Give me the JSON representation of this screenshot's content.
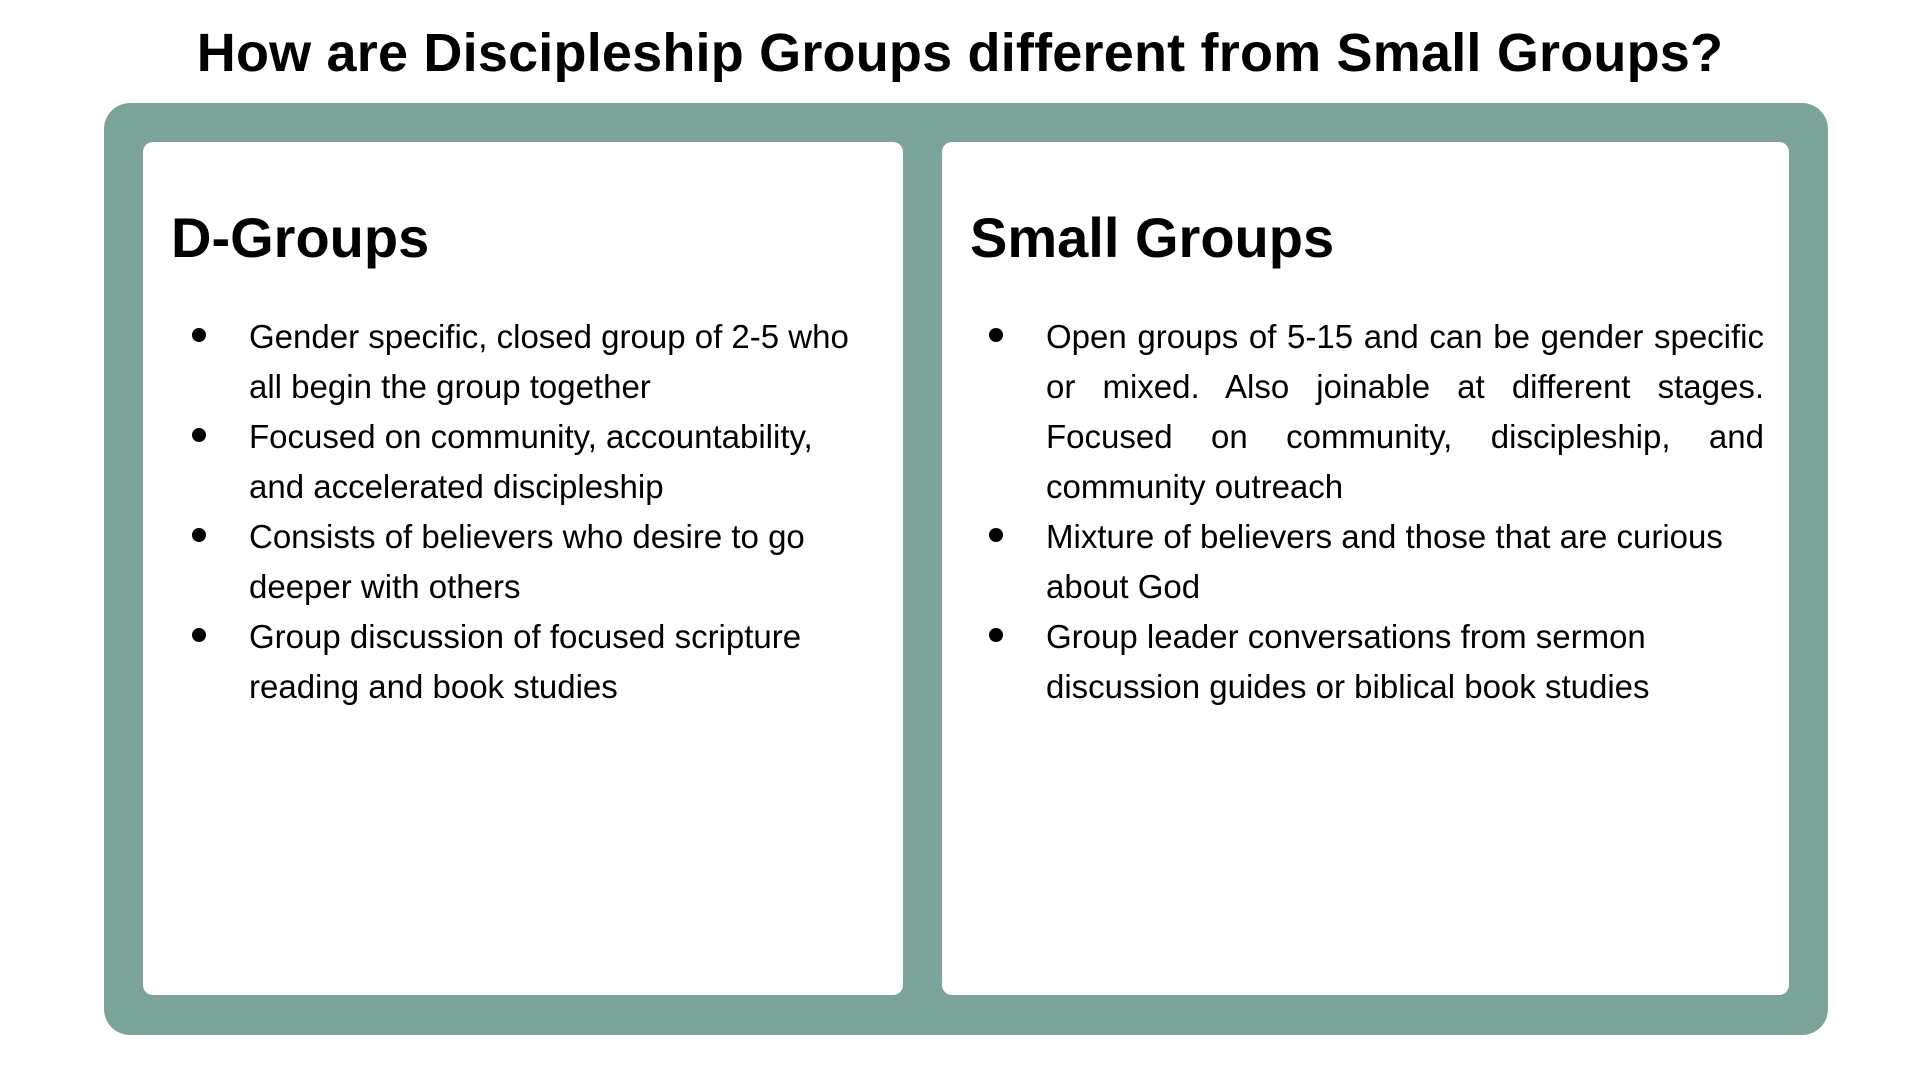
{
  "title": "How are Discipleship Groups different from Small Groups?",
  "colors": {
    "frame": "#7ca39a",
    "panel": "#ffffff",
    "text": "#000000"
  },
  "panels": [
    {
      "heading": "D-Groups",
      "items": [
        "Gender specific, closed group of 2-5 who all begin the group together",
        "Focused on community, accountability, and accelerated discipleship",
        "Consists of believers who desire to go deeper with others",
        "Group discussion of focused scripture reading and book studies"
      ]
    },
    {
      "heading": "Small Groups",
      "items": [
        "Open groups of 5-15 and can be gender specific or mixed. Also joinable at different stages. Focused on community, discipleship, and community outreach",
        "Mixture of believers and those that are curious about God",
        "Group leader conversations from sermon discussion guides or biblical book studies"
      ]
    }
  ]
}
